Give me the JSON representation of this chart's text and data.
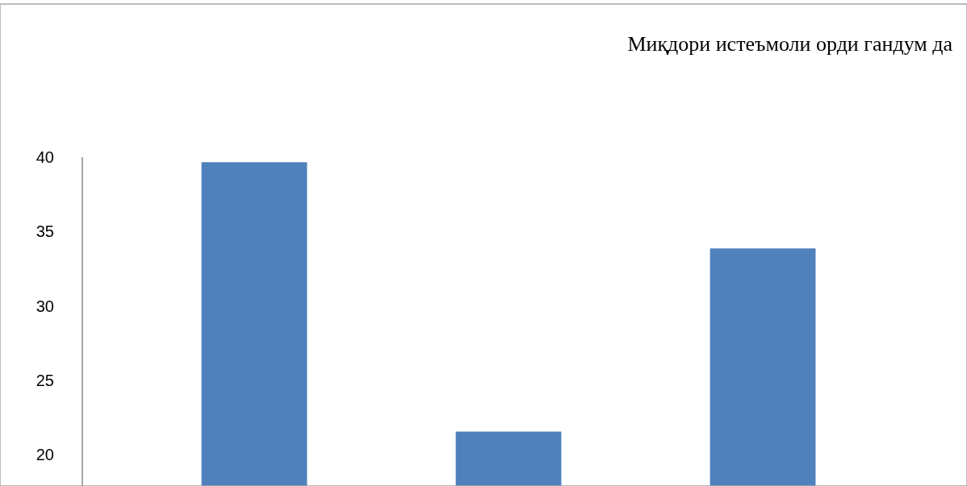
{
  "chart_data": {
    "type": "bar",
    "title": "Миқдори истеъмоли орди гандум да",
    "categories": [
      null,
      null,
      null
    ],
    "values": [
      39.7,
      21.6,
      33.9
    ],
    "color": "#4f81bd",
    "ylim": [
      17.9,
      40
    ],
    "yticks": [
      20,
      25,
      30,
      35,
      40
    ]
  }
}
